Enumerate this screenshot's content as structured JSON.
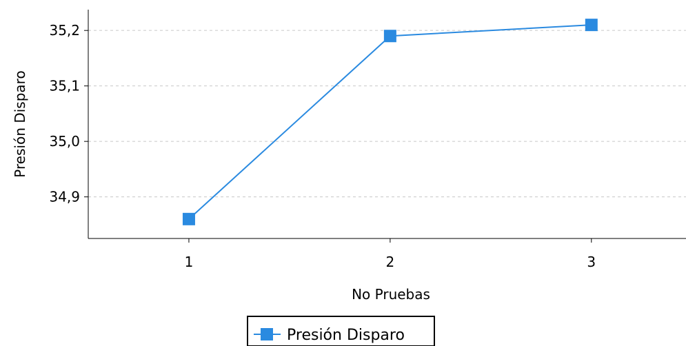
{
  "chart_data": {
    "type": "line",
    "title": "",
    "xlabel": "No Pruebas",
    "ylabel": "Presión Disparo",
    "x": [
      1,
      2,
      3
    ],
    "x_ticks": [
      "1",
      "2",
      "3"
    ],
    "y_ticks": [
      34.9,
      35.0,
      35.1,
      35.2
    ],
    "y_tick_labels": [
      "34,9",
      "35,0",
      "35,1",
      "35,2"
    ],
    "ylim": [
      34.825,
      35.2375
    ],
    "xlim": [
      0.5,
      3.47
    ],
    "series": [
      {
        "name": "Presión Disparo",
        "values": [
          34.86,
          35.19,
          35.21
        ],
        "color": "#2a8ae0",
        "marker": "square"
      }
    ],
    "grid": {
      "horizontal": true,
      "vertical": false,
      "style": "dashed"
    },
    "legend": {
      "position": "bottom-center",
      "entries": [
        "Presión Disparo"
      ]
    }
  }
}
